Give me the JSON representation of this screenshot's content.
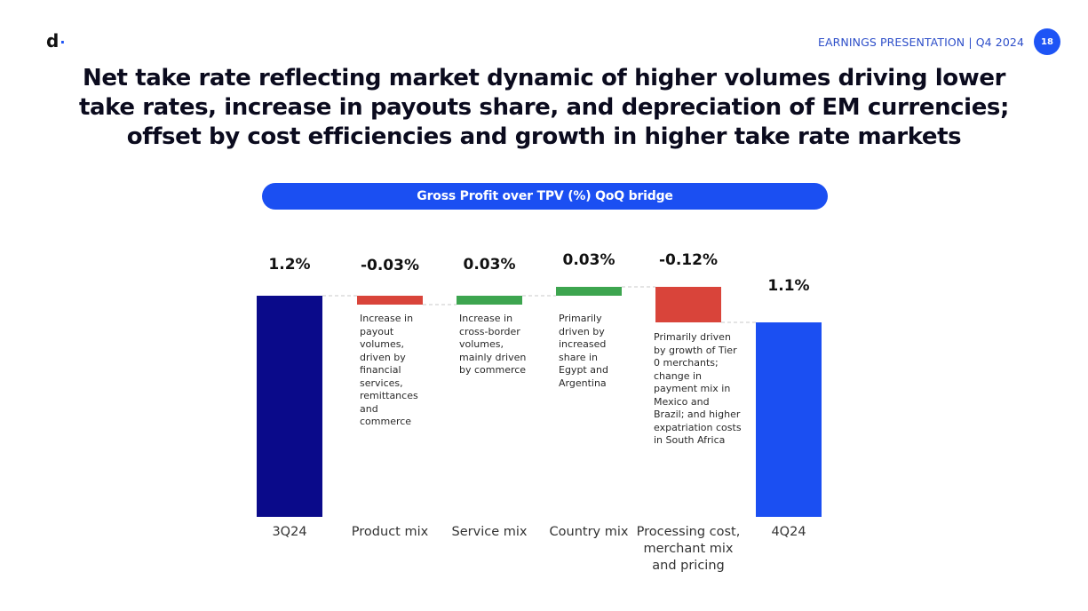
{
  "header": {
    "logo_letter": "d",
    "logo_dot": "·",
    "title": "EARNINGS PRESENTATION | Q4 2024",
    "page_number": "18"
  },
  "headline": "Net take rate reflecting market dynamic of higher volumes driving lower take rates, increase in payouts share, and depreciation of EM currencies; offset by cost efficiencies and growth in higher take rate markets",
  "colors": {
    "brand_blue": "#1e54f5",
    "start_bar": "#0a0a8a",
    "end_bar": "#1b4ff2",
    "negative": "#d9443a",
    "positive": "#3da54f"
  },
  "chart_data": {
    "type": "bar",
    "subtype": "waterfall",
    "title": "Gross Profit over TPV (%) QoQ bridge",
    "categories": [
      "3Q24",
      "Product mix",
      "Service mix",
      "Country mix",
      "Processing cost, merchant mix and pricing",
      "4Q24"
    ],
    "values": [
      1.2,
      -0.03,
      0.03,
      0.03,
      -0.12,
      1.1
    ],
    "value_labels": [
      "1.2%",
      "-0.03%",
      "0.03%",
      "0.03%",
      "-0.12%",
      "1.1%"
    ],
    "kinds": [
      "total",
      "delta",
      "delta",
      "delta",
      "delta",
      "total"
    ],
    "notes": [
      "",
      "Increase in payout volumes, driven by financial services, remittances and commerce",
      "Increase in cross-border volumes, mainly driven by commerce",
      "Primarily driven by increased share in Egypt and Argentina",
      "Primarily driven by growth of Tier 0 merchants; change in payment mix in Mexico and Brazil; and higher expatriation costs in South Africa",
      ""
    ],
    "unit": "%",
    "xlabel": "",
    "ylabel": ""
  }
}
